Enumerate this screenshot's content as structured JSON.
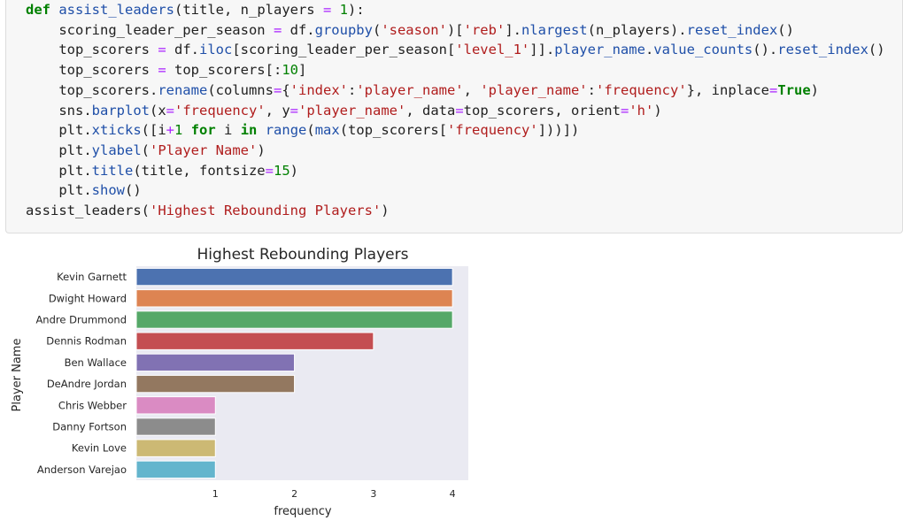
{
  "code": {
    "lines": [
      [
        {
          "t": "def",
          "c": "kw"
        },
        {
          "t": " "
        },
        {
          "t": "assist_leaders",
          "c": "fn"
        },
        {
          "t": "(title, n_players "
        },
        {
          "t": "=",
          "c": "op"
        },
        {
          "t": " "
        },
        {
          "t": "1",
          "c": "num"
        },
        {
          "t": "):"
        }
      ],
      [
        {
          "t": "    scoring_leader_per_season "
        },
        {
          "t": "=",
          "c": "op"
        },
        {
          "t": " df."
        },
        {
          "t": "groupby",
          "c": "fn"
        },
        {
          "t": "("
        },
        {
          "t": "'season'",
          "c": "str"
        },
        {
          "t": ")["
        },
        {
          "t": "'reb'",
          "c": "str"
        },
        {
          "t": "]."
        },
        {
          "t": "nlargest",
          "c": "fn"
        },
        {
          "t": "(n_players)."
        },
        {
          "t": "reset_index",
          "c": "fn"
        },
        {
          "t": "()"
        }
      ],
      [
        {
          "t": "    top_scorers "
        },
        {
          "t": "=",
          "c": "op"
        },
        {
          "t": " df."
        },
        {
          "t": "iloc",
          "c": "fn"
        },
        {
          "t": "[scoring_leader_per_season["
        },
        {
          "t": "'level_1'",
          "c": "str"
        },
        {
          "t": "]]."
        },
        {
          "t": "player_name",
          "c": "fn"
        },
        {
          "t": "."
        },
        {
          "t": "value_counts",
          "c": "fn"
        },
        {
          "t": "()."
        },
        {
          "t": "reset_index",
          "c": "fn"
        },
        {
          "t": "()"
        }
      ],
      [
        {
          "t": "    top_scorers "
        },
        {
          "t": "=",
          "c": "op"
        },
        {
          "t": " top_scorers[:"
        },
        {
          "t": "10",
          "c": "num"
        },
        {
          "t": "]"
        }
      ],
      [
        {
          "t": "    top_scorers."
        },
        {
          "t": "rename",
          "c": "fn"
        },
        {
          "t": "(columns"
        },
        {
          "t": "=",
          "c": "op"
        },
        {
          "t": "{"
        },
        {
          "t": "'index'",
          "c": "str"
        },
        {
          "t": ":"
        },
        {
          "t": "'player_name'",
          "c": "str"
        },
        {
          "t": ", "
        },
        {
          "t": "'player_name'",
          "c": "str"
        },
        {
          "t": ":"
        },
        {
          "t": "'frequency'",
          "c": "str"
        },
        {
          "t": "}, inplace"
        },
        {
          "t": "=",
          "c": "op"
        },
        {
          "t": "True",
          "c": "bool"
        },
        {
          "t": ")"
        }
      ],
      [
        {
          "t": "    sns."
        },
        {
          "t": "barplot",
          "c": "fn"
        },
        {
          "t": "(x"
        },
        {
          "t": "=",
          "c": "op"
        },
        {
          "t": "'frequency'",
          "c": "str"
        },
        {
          "t": ", y"
        },
        {
          "t": "=",
          "c": "op"
        },
        {
          "t": "'player_name'",
          "c": "str"
        },
        {
          "t": ", data"
        },
        {
          "t": "=",
          "c": "op"
        },
        {
          "t": "top_scorers, orient"
        },
        {
          "t": "=",
          "c": "op"
        },
        {
          "t": "'h'",
          "c": "str"
        },
        {
          "t": ")"
        }
      ],
      [
        {
          "t": "    plt."
        },
        {
          "t": "xticks",
          "c": "fn"
        },
        {
          "t": "([i"
        },
        {
          "t": "+",
          "c": "op"
        },
        {
          "t": "1",
          "c": "num"
        },
        {
          "t": " "
        },
        {
          "t": "for",
          "c": "kw"
        },
        {
          "t": " i "
        },
        {
          "t": "in",
          "c": "kw"
        },
        {
          "t": " "
        },
        {
          "t": "range",
          "c": "fn"
        },
        {
          "t": "("
        },
        {
          "t": "max",
          "c": "fn"
        },
        {
          "t": "(top_scorers["
        },
        {
          "t": "'frequency'",
          "c": "str"
        },
        {
          "t": "]))])"
        }
      ],
      [
        {
          "t": "    plt."
        },
        {
          "t": "ylabel",
          "c": "fn"
        },
        {
          "t": "("
        },
        {
          "t": "'Player Name'",
          "c": "str"
        },
        {
          "t": ")"
        }
      ],
      [
        {
          "t": "    plt."
        },
        {
          "t": "title",
          "c": "fn"
        },
        {
          "t": "(title, fontsize"
        },
        {
          "t": "=",
          "c": "op"
        },
        {
          "t": "15",
          "c": "num"
        },
        {
          "t": ")"
        }
      ],
      [
        {
          "t": "    plt."
        },
        {
          "t": "show",
          "c": "fn"
        },
        {
          "t": "()"
        }
      ],
      [
        {
          "t": "assist_leaders("
        },
        {
          "t": "'Highest Rebounding Players'",
          "c": "str"
        },
        {
          "t": ")"
        }
      ]
    ]
  },
  "chart_data": {
    "type": "bar",
    "orientation": "horizontal",
    "title": "Highest Rebounding Players",
    "xlabel": "frequency",
    "ylabel": "Player Name",
    "categories": [
      "Kevin Garnett",
      "Dwight Howard",
      "Andre Drummond",
      "Dennis Rodman",
      "Ben Wallace",
      "DeAndre Jordan",
      "Chris Webber",
      "Danny Fortson",
      "Kevin Love",
      "Anderson Varejao"
    ],
    "values": [
      4,
      4,
      4,
      3,
      2,
      2,
      1,
      1,
      1,
      1
    ],
    "colors": [
      "#4c72b0",
      "#dd8452",
      "#55a868",
      "#c44e52",
      "#8172b3",
      "#937860",
      "#da8bc3",
      "#8c8c8c",
      "#ccb974",
      "#64b5cd"
    ],
    "xticks": [
      "1",
      "2",
      "3",
      "4"
    ],
    "xlim": [
      0,
      4.2
    ],
    "grid": false
  }
}
